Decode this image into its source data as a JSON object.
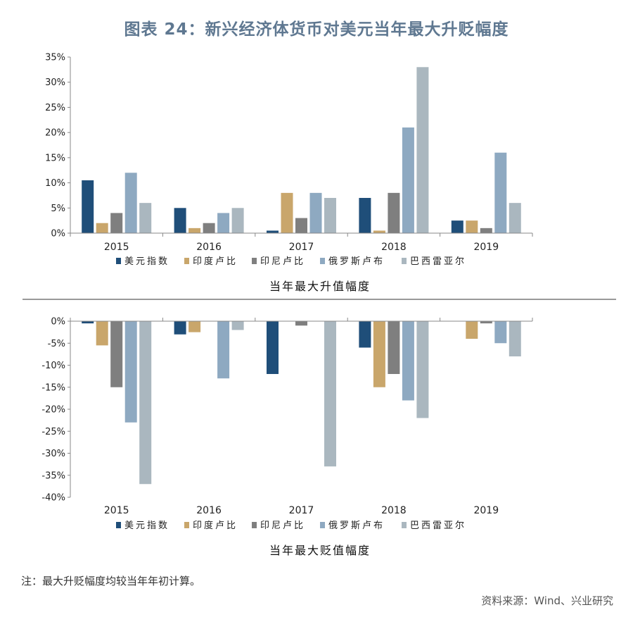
{
  "title": "图表 24：新兴经济体货币对美元当年最大升贬幅度",
  "note": "注：最大升贬幅度均较当年年初计算。",
  "source": "资料来源：Wind、兴业研究",
  "colors": {
    "美元指数": "#1f4e79",
    "印度卢比": "#c9a66b",
    "印尼卢比": "#7f7f7f",
    "俄罗斯卢布": "#8ea9c1",
    "巴西雷亚尔": "#aab7bf"
  },
  "chart_data": [
    {
      "type": "bar",
      "title": "当年最大升值幅度",
      "categories": [
        "2015",
        "2016",
        "2017",
        "2018",
        "2019"
      ],
      "yticks": [
        "0%",
        "5%",
        "10%",
        "15%",
        "20%",
        "25%",
        "30%",
        "35%"
      ],
      "ylim": [
        0,
        35
      ],
      "legend_position": "bottom",
      "series": [
        {
          "name": "美元指数",
          "values": [
            10.5,
            5,
            0.5,
            7,
            2.5
          ]
        },
        {
          "name": "印度卢比",
          "values": [
            2,
            1,
            8,
            0.5,
            2.5
          ]
        },
        {
          "name": "印尼卢比",
          "values": [
            4,
            2,
            3,
            8,
            1
          ]
        },
        {
          "name": "俄罗斯卢布",
          "values": [
            12,
            4,
            8,
            21,
            16
          ]
        },
        {
          "name": "巴西雷亚尔",
          "values": [
            6,
            5,
            7,
            33,
            6
          ]
        }
      ]
    },
    {
      "type": "bar",
      "title": "当年最大贬值幅度",
      "categories": [
        "2015",
        "2016",
        "2017",
        "2018",
        "2019"
      ],
      "yticks": [
        "0%",
        "-5%",
        "-10%",
        "-15%",
        "-20%",
        "-25%",
        "-30%",
        "-35%",
        "-40%"
      ],
      "ylim": [
        -40,
        0
      ],
      "legend_position": "bottom",
      "series": [
        {
          "name": "美元指数",
          "values": [
            -0.5,
            -3,
            -12,
            -6,
            0
          ]
        },
        {
          "name": "印度卢比",
          "values": [
            -5.5,
            -2.5,
            0,
            -15,
            -4
          ]
        },
        {
          "name": "印尼卢比",
          "values": [
            -15,
            0,
            -1,
            -12,
            -0.5
          ]
        },
        {
          "name": "俄罗斯卢布",
          "values": [
            -23,
            -13,
            0,
            -18,
            -5
          ]
        },
        {
          "name": "巴西雷亚尔",
          "values": [
            -37,
            -2,
            -33,
            -22,
            -8
          ]
        }
      ]
    }
  ]
}
